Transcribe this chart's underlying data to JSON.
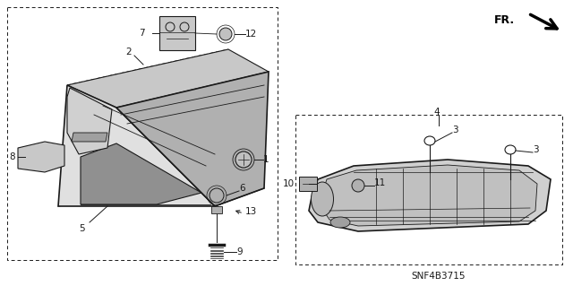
{
  "title": "SNF4B3715",
  "bg_color": "#ffffff",
  "line_color": "#1a1a1a",
  "gray_light": "#d8d8d8",
  "gray_mid": "#b8b8b8",
  "gray_dark": "#888888",
  "gray_fill": "#e8e8e8"
}
